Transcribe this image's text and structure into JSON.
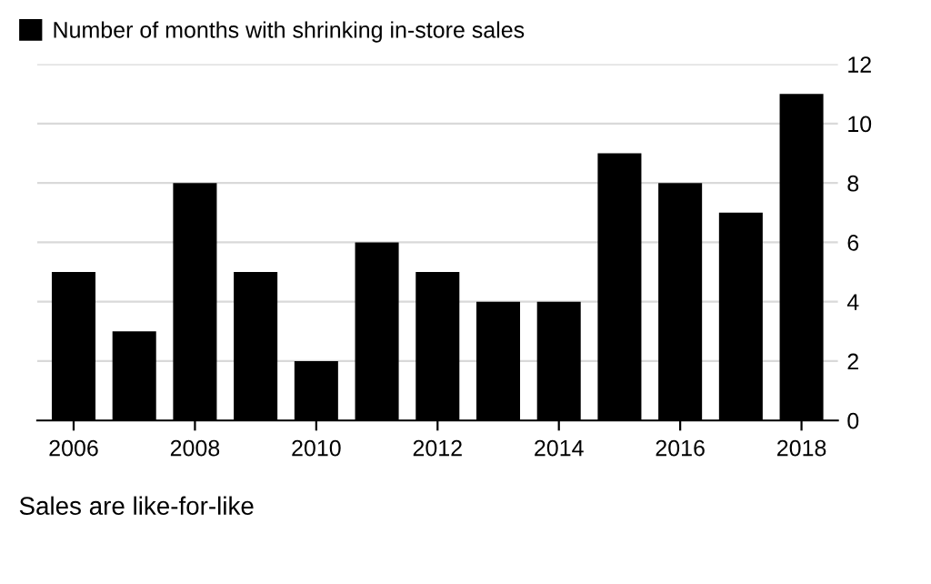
{
  "chart_data": {
    "type": "bar",
    "x": [
      2006,
      2007,
      2008,
      2009,
      2010,
      2011,
      2012,
      2013,
      2014,
      2015,
      2016,
      2017,
      2018
    ],
    "series": [
      {
        "name": "Number of months with shrinking in-store sales",
        "color": "#000000",
        "values": [
          5,
          3,
          8,
          5,
          2,
          6,
          5,
          4,
          4,
          9,
          8,
          7,
          11
        ]
      }
    ],
    "xlim": [
      2005.4,
      2018.6
    ],
    "xticks": [
      2006,
      2008,
      2010,
      2012,
      2014,
      2016,
      2018
    ],
    "ylim": [
      0,
      12
    ],
    "yticks": [
      0,
      2,
      4,
      6,
      8,
      10,
      12
    ],
    "grid": "y",
    "legend": "top left",
    "annotations": [
      "Sales are like-for-like"
    ]
  }
}
